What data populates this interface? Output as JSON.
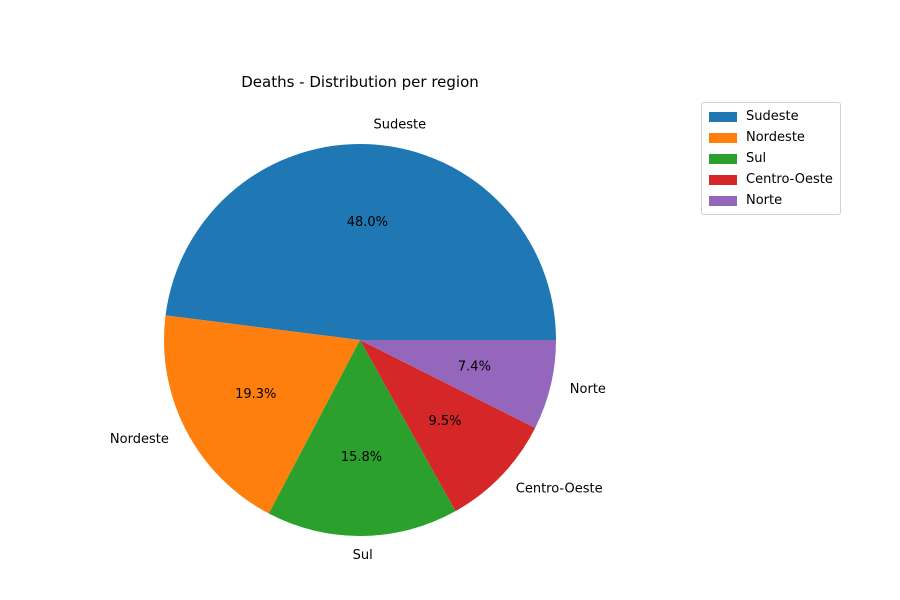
{
  "chart_data": {
    "type": "pie",
    "title": "Deaths - Distribution per region",
    "categories": [
      "Sudeste",
      "Nordeste",
      "Sul",
      "Centro-Oeste",
      "Norte"
    ],
    "values": [
      48.0,
      19.3,
      15.8,
      9.5,
      7.4
    ],
    "value_labels": [
      "48.0%",
      "19.3%",
      "15.8%",
      "9.5%",
      "7.4%"
    ],
    "colors": [
      "#1f77b4",
      "#ff7f0e",
      "#2ca02c",
      "#d62728",
      "#9467bd"
    ],
    "start_angle_deg": 0,
    "direction": "counterclockwise",
    "legend": {
      "placement": "top-right",
      "entries": [
        "Sudeste",
        "Nordeste",
        "Sul",
        "Centro-Oeste",
        "Norte"
      ]
    }
  }
}
